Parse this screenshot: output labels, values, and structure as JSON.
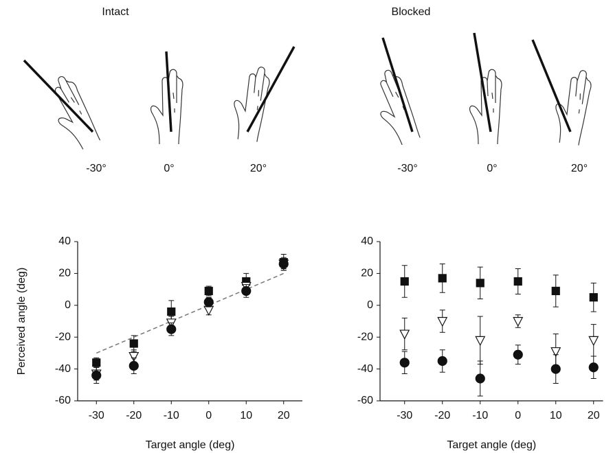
{
  "figure": {
    "headings": [
      "Intact",
      "Blocked"
    ],
    "angle_labels": [
      [
        "-30°",
        "0°",
        "20°"
      ],
      [
        "-30°",
        "0°",
        "20°"
      ]
    ]
  },
  "chart_data": [
    {
      "type": "scatter",
      "y_label": "Perceived angle (deg)",
      "x_label": "Target angle (deg)",
      "x": [
        -30,
        -20,
        -10,
        0,
        10,
        20
      ],
      "xlim": [
        -35,
        25
      ],
      "xticks": [
        -30,
        -20,
        -10,
        0,
        10,
        20
      ],
      "ylim": [
        -60,
        40
      ],
      "yticks": [
        -60,
        -40,
        -20,
        0,
        20,
        40
      ],
      "grid": false,
      "reference_line": {
        "x": [
          -30,
          20
        ],
        "y": [
          -30,
          20
        ],
        "color": "#777",
        "dashed": true
      },
      "series": [
        {
          "marker": "square",
          "color": "#111",
          "filled": true,
          "values": [
            -36,
            -24,
            -4,
            9,
            15,
            27
          ],
          "errors": [
            3,
            5,
            7,
            3,
            5,
            5
          ]
        },
        {
          "marker": "triangle-down",
          "color": "#111",
          "filled": false,
          "values": [
            -43,
            -32,
            -11,
            -3,
            12,
            26
          ],
          "errors": [
            4,
            4,
            4,
            3,
            4,
            4
          ]
        },
        {
          "marker": "circle",
          "color": "#111",
          "filled": true,
          "values": [
            -44,
            -38,
            -15,
            2,
            9,
            26
          ],
          "errors": [
            5,
            5,
            4,
            3,
            4,
            3
          ]
        }
      ]
    },
    {
      "type": "scatter",
      "x_label": "Target angle (deg)",
      "x": [
        -30,
        -20,
        -10,
        0,
        10,
        20
      ],
      "xlim": [
        -36.5,
        22.5
      ],
      "xticks": [
        -30,
        -20,
        -10,
        0,
        10,
        20
      ],
      "ylim": [
        -60,
        40
      ],
      "yticks": [
        -60,
        -40,
        -20,
        0,
        20,
        40
      ],
      "grid": false,
      "series": [
        {
          "marker": "square",
          "color": "#111",
          "filled": true,
          "values": [
            15,
            17,
            14,
            15,
            9,
            5
          ],
          "errors": [
            10,
            9,
            10,
            8,
            10,
            9
          ]
        },
        {
          "marker": "triangle-down",
          "color": "#111",
          "filled": false,
          "values": [
            -18,
            -10,
            -22,
            -10,
            -29,
            -22
          ],
          "errors": [
            10,
            7,
            15,
            4,
            11,
            10
          ]
        },
        {
          "marker": "circle",
          "color": "#111",
          "filled": true,
          "values": [
            -36,
            -35,
            -46,
            -31,
            -40,
            -39
          ],
          "errors": [
            7,
            7,
            11,
            6,
            9,
            7
          ]
        }
      ]
    }
  ]
}
